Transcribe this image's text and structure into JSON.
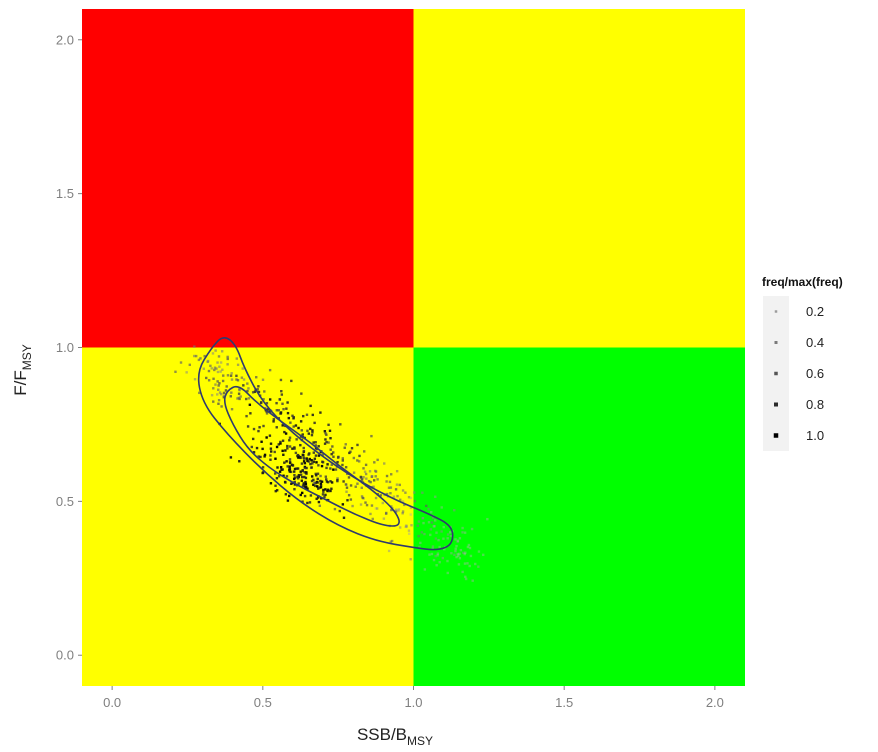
{
  "chart_data": {
    "type": "scatter",
    "title": "",
    "xlabel": {
      "main": "SSB/B",
      "sub": "MSY"
    },
    "ylabel": {
      "main": "F/F",
      "sub": "MSY"
    },
    "xlim": [
      -0.1,
      2.1
    ],
    "ylim": [
      -0.1,
      2.1
    ],
    "x_ticks": [
      0.0,
      0.5,
      1.0,
      1.5,
      2.0
    ],
    "y_ticks": [
      0.0,
      0.5,
      1.0,
      1.5,
      2.0
    ],
    "x_tick_labels": [
      "0.0",
      "0.5",
      "1.0",
      "1.5",
      "2.0"
    ],
    "y_tick_labels": [
      "0.0",
      "0.5",
      "1.0",
      "1.5",
      "2.0"
    ],
    "grid": false,
    "quadrants": [
      {
        "name": "overfished-overfishing",
        "x": [
          -0.1,
          1.0
        ],
        "y": [
          1.0,
          2.1
        ],
        "color": "#ff0000"
      },
      {
        "name": "healthy-overfishing",
        "x": [
          1.0,
          2.1
        ],
        "y": [
          1.0,
          2.1
        ],
        "color": "#ffff00"
      },
      {
        "name": "overfished-no-overfishing",
        "x": [
          -0.1,
          1.0
        ],
        "y": [
          -0.1,
          1.0
        ],
        "color": "#ffff00"
      },
      {
        "name": "healthy-no-overfishing",
        "x": [
          1.0,
          2.1
        ],
        "y": [
          -0.1,
          1.0
        ],
        "color": "#00ff00"
      }
    ],
    "point_cloud": {
      "description_of_distribution": "density of points along a negative trend",
      "core_center": [
        0.62,
        0.6
      ],
      "trend_start": [
        0.3,
        0.95
      ],
      "trend_end": [
        1.2,
        0.3
      ],
      "count": 650
    },
    "contours": [
      {
        "level": "outer",
        "color": "#2e3a6e",
        "points": [
          [
            0.37,
            1.04
          ],
          [
            0.33,
            1.0
          ],
          [
            0.28,
            0.92
          ],
          [
            0.3,
            0.82
          ],
          [
            0.38,
            0.72
          ],
          [
            0.5,
            0.6
          ],
          [
            0.62,
            0.5
          ],
          [
            0.75,
            0.42
          ],
          [
            0.88,
            0.37
          ],
          [
            1.0,
            0.35
          ],
          [
            1.08,
            0.34
          ],
          [
            1.13,
            0.36
          ],
          [
            1.13,
            0.42
          ],
          [
            1.05,
            0.46
          ],
          [
            0.95,
            0.5
          ],
          [
            0.83,
            0.56
          ],
          [
            0.72,
            0.63
          ],
          [
            0.6,
            0.72
          ],
          [
            0.5,
            0.82
          ],
          [
            0.44,
            0.93
          ],
          [
            0.41,
            1.01
          ]
        ]
      },
      {
        "level": "inner",
        "color": "#2e3a6e",
        "points": [
          [
            0.38,
            0.86
          ],
          [
            0.42,
            0.88
          ],
          [
            0.48,
            0.82
          ],
          [
            0.56,
            0.76
          ],
          [
            0.66,
            0.69
          ],
          [
            0.76,
            0.61
          ],
          [
            0.86,
            0.54
          ],
          [
            0.94,
            0.47
          ],
          [
            0.96,
            0.42
          ],
          [
            0.9,
            0.42
          ],
          [
            0.8,
            0.46
          ],
          [
            0.7,
            0.51
          ],
          [
            0.6,
            0.56
          ],
          [
            0.52,
            0.61
          ],
          [
            0.45,
            0.67
          ],
          [
            0.4,
            0.75
          ],
          [
            0.37,
            0.82
          ]
        ]
      }
    ],
    "legend": {
      "title": "freq/max(freq)",
      "placement": "right",
      "entries": [
        {
          "label": "0.2",
          "value": 0.2,
          "color": "#9c9c9c"
        },
        {
          "label": "0.4",
          "value": 0.4,
          "color": "#7a7a7a"
        },
        {
          "label": "0.6",
          "value": 0.6,
          "color": "#555555"
        },
        {
          "label": "0.8",
          "value": 0.8,
          "color": "#2b2b2b"
        },
        {
          "label": "1.0",
          "value": 1.0,
          "color": "#000000"
        }
      ]
    }
  }
}
